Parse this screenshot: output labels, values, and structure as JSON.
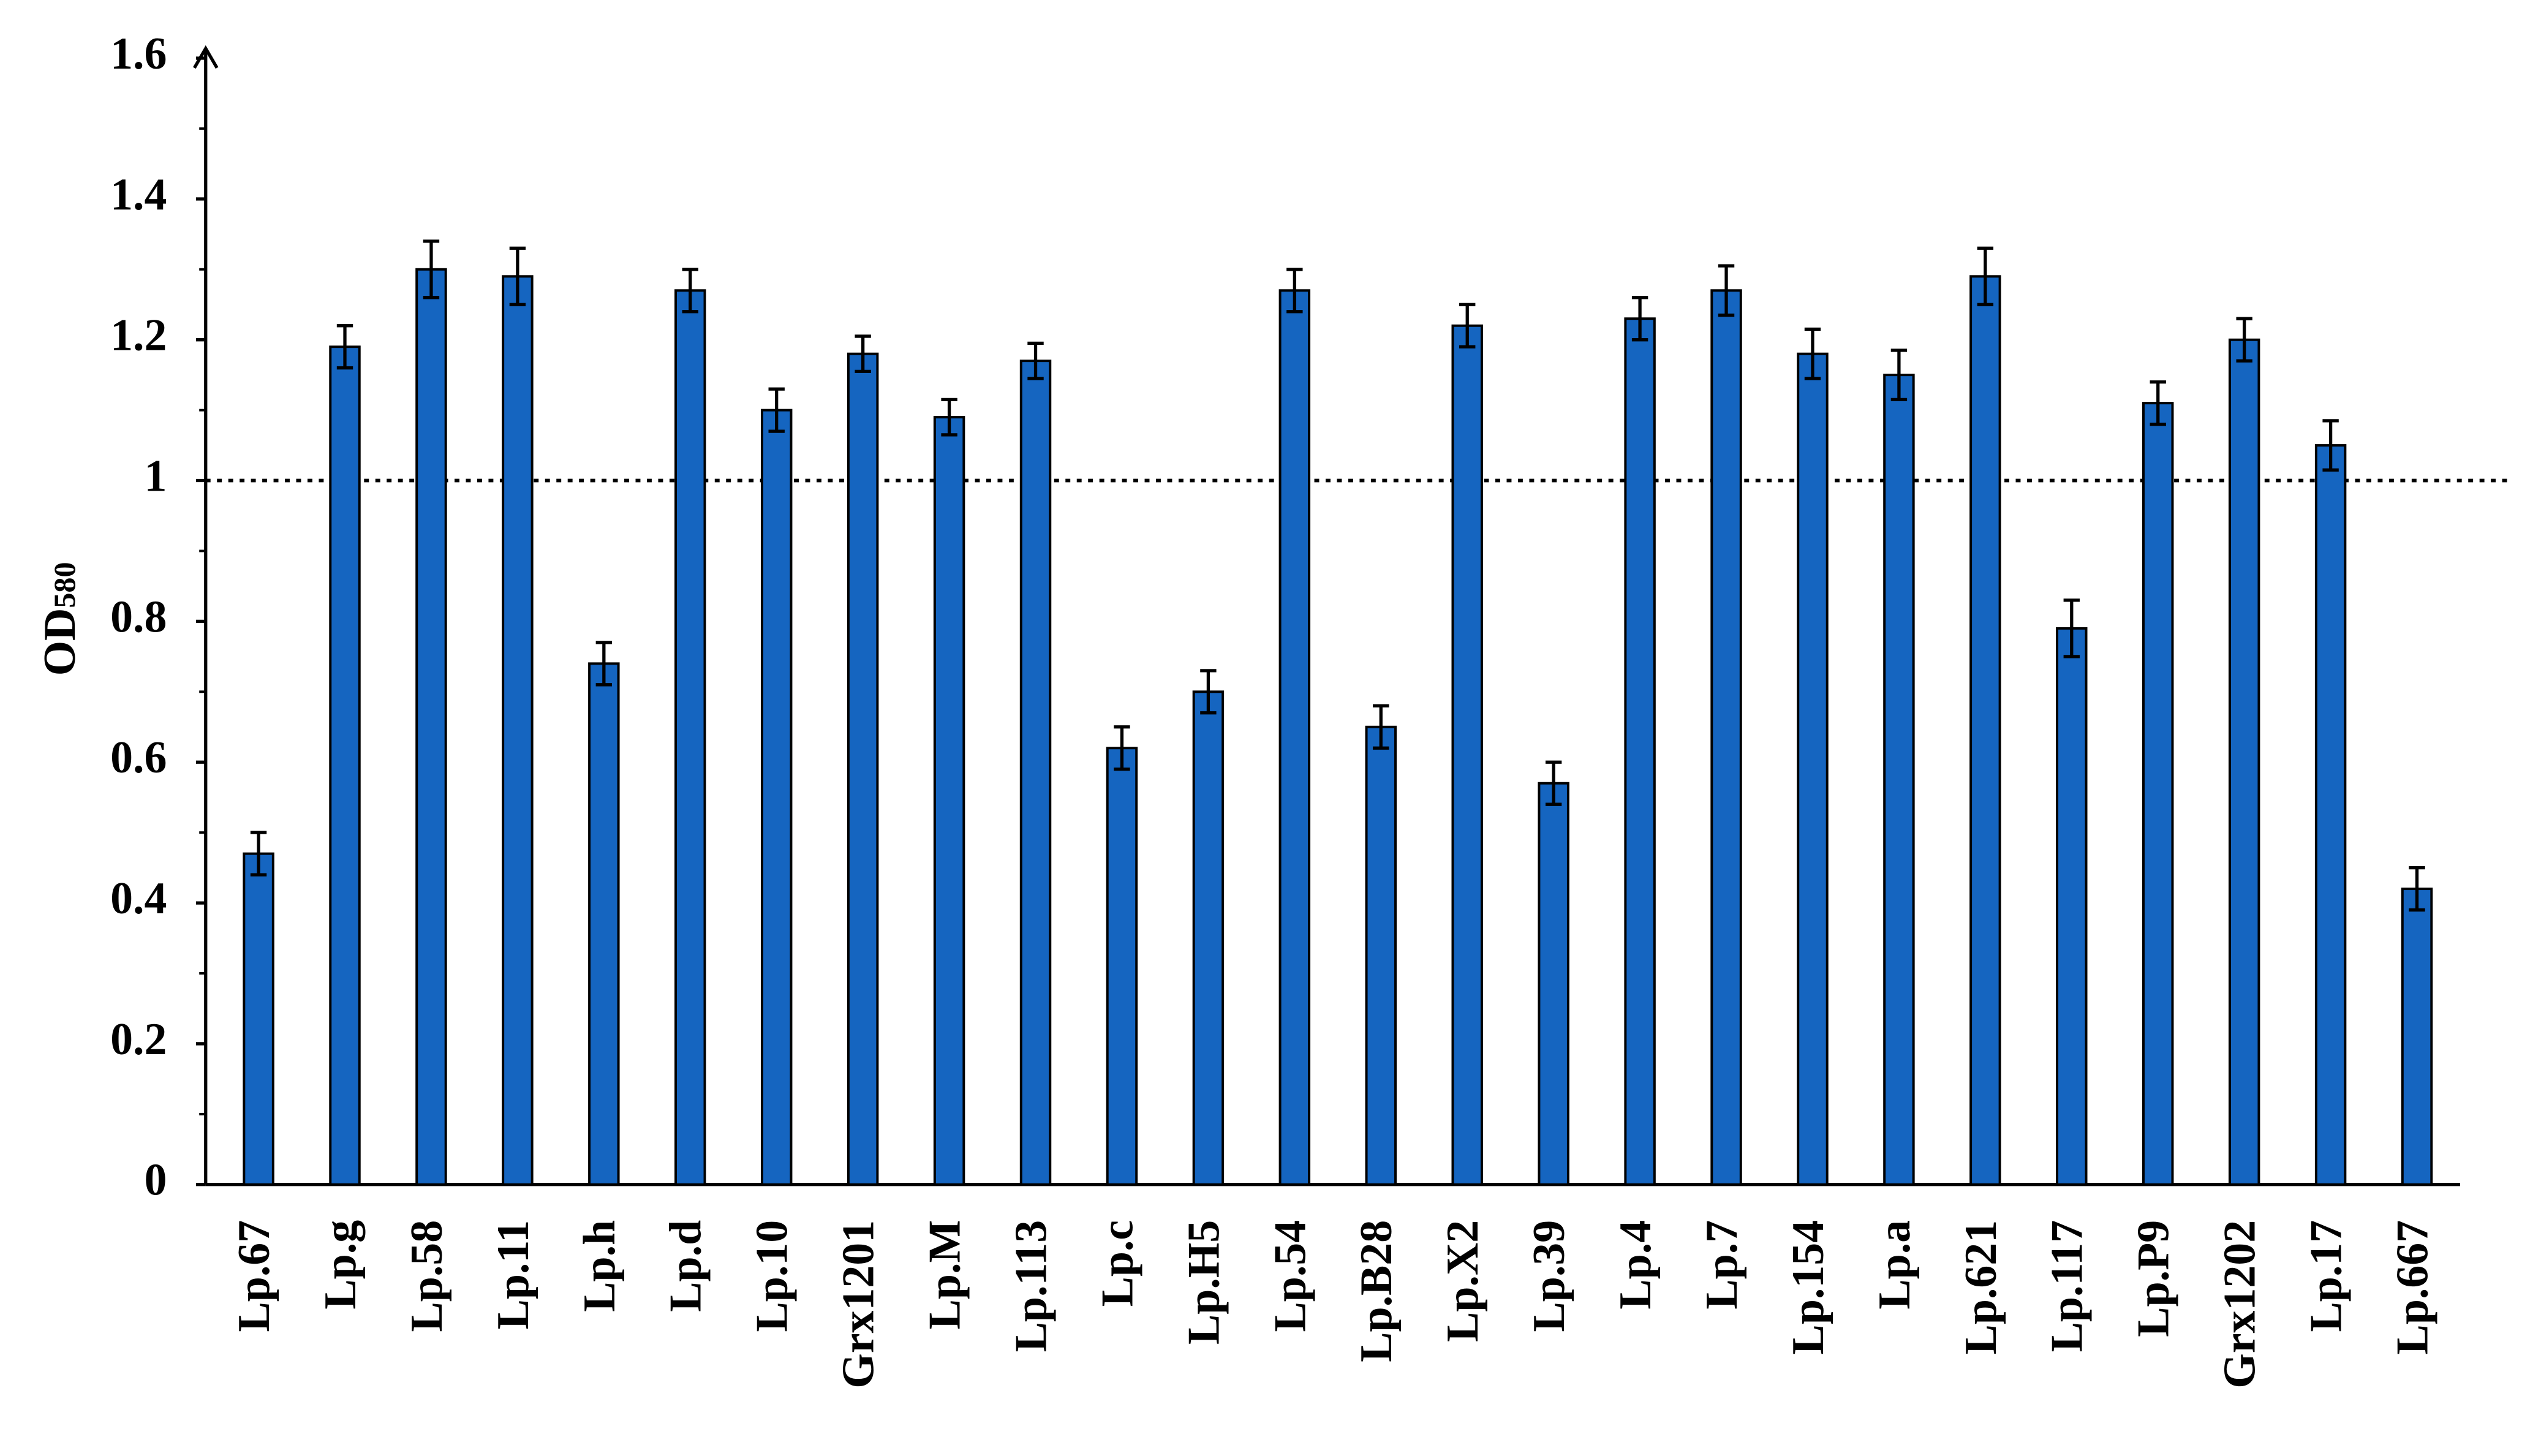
{
  "chart_data": {
    "type": "bar",
    "ylabel": {
      "text": "OD",
      "subscript": "580"
    },
    "categories": [
      "Lp.67",
      "Lp.g",
      "Lp.58",
      "Lp.11",
      "Lp.h",
      "Lp.d",
      "Lp.10",
      "Grx1201",
      "Lp.M",
      "Lp.113",
      "Lp.c",
      "Lp.H5",
      "Lp.54",
      "Lp.B28",
      "Lp.X2",
      "Lp.39",
      "Lp.4",
      "Lp.7",
      "Lp.154",
      "Lp.a",
      "Lp.621",
      "Lp.117",
      "Lp.P9",
      "Grx1202",
      "Lp.17",
      "Lp.667"
    ],
    "values": [
      0.47,
      1.19,
      1.3,
      1.29,
      0.74,
      1.27,
      1.1,
      1.18,
      1.09,
      1.17,
      0.62,
      0.7,
      1.27,
      0.65,
      1.22,
      0.57,
      1.23,
      1.27,
      1.18,
      1.15,
      1.29,
      0.79,
      1.11,
      1.2,
      1.05,
      0.42
    ],
    "errors": [
      0.03,
      0.03,
      0.04,
      0.04,
      0.03,
      0.03,
      0.03,
      0.025,
      0.025,
      0.025,
      0.03,
      0.03,
      0.03,
      0.03,
      0.03,
      0.03,
      0.03,
      0.035,
      0.035,
      0.035,
      0.04,
      0.04,
      0.03,
      0.03,
      0.035,
      0.03
    ],
    "color": "#1565c0",
    "ylim": [
      0,
      1.6
    ],
    "yticks": [
      0,
      0.2,
      0.4,
      0.6,
      0.8,
      1,
      1.2,
      1.4,
      1.6
    ],
    "reference_line": 1
  }
}
